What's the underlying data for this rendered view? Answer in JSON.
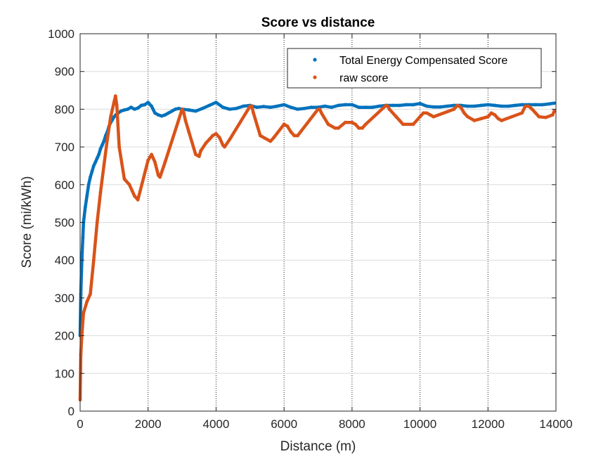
{
  "chart_data": {
    "type": "line",
    "title": "Score vs distance",
    "xlabel": "Distance (m)",
    "ylabel": "Score (mi/kWh)",
    "xlim": [
      0,
      14000
    ],
    "ylim": [
      0,
      1000
    ],
    "xticks": [
      0,
      2000,
      4000,
      6000,
      8000,
      10000,
      12000,
      14000
    ],
    "yticks": [
      0,
      100,
      200,
      300,
      400,
      500,
      600,
      700,
      800,
      900,
      1000
    ],
    "grid": "on",
    "legend_position": "top-right",
    "series": [
      {
        "name": "Total Energy Compensated Score",
        "color": "#0072BD",
        "marker": "dot",
        "x": [
          0,
          20,
          40,
          60,
          80,
          100,
          150,
          200,
          250,
          300,
          350,
          400,
          450,
          500,
          550,
          600,
          650,
          700,
          750,
          800,
          850,
          900,
          950,
          1000,
          1050,
          1100,
          1150,
          1200,
          1300,
          1400,
          1500,
          1600,
          1700,
          1800,
          1900,
          2000,
          2100,
          2200,
          2300,
          2400,
          2500,
          2600,
          2700,
          2800,
          2900,
          3000,
          3200,
          3400,
          3600,
          3800,
          4000,
          4200,
          4400,
          4600,
          4800,
          5000,
          5200,
          5400,
          5600,
          5800,
          6000,
          6200,
          6400,
          6600,
          6800,
          7000,
          7200,
          7400,
          7600,
          7800,
          8000,
          8200,
          8400,
          8600,
          8800,
          9000,
          9200,
          9400,
          9600,
          9800,
          10000,
          10200,
          10400,
          10600,
          10800,
          11000,
          11200,
          11400,
          11600,
          11800,
          12000,
          12200,
          12400,
          12600,
          12800,
          13000,
          13200,
          13400,
          13600,
          13800,
          13950
        ],
        "y": [
          200,
          310,
          370,
          420,
          460,
          500,
          540,
          570,
          600,
          620,
          635,
          650,
          660,
          670,
          680,
          695,
          705,
          715,
          730,
          740,
          755,
          765,
          772,
          780,
          785,
          788,
          792,
          795,
          798,
          800,
          805,
          800,
          803,
          810,
          812,
          818,
          808,
          790,
          785,
          782,
          785,
          790,
          795,
          800,
          802,
          800,
          798,
          795,
          802,
          810,
          818,
          805,
          800,
          802,
          808,
          810,
          805,
          807,
          805,
          808,
          812,
          805,
          800,
          802,
          805,
          805,
          808,
          805,
          810,
          812,
          812,
          805,
          805,
          805,
          808,
          810,
          810,
          810,
          812,
          812,
          815,
          808,
          806,
          806,
          808,
          810,
          810,
          808,
          808,
          810,
          812,
          810,
          808,
          808,
          810,
          812,
          812,
          812,
          812,
          814,
          816
        ]
      },
      {
        "name": "raw score",
        "color": "#D95319",
        "marker": "dot",
        "x": [
          0,
          20,
          50,
          100,
          200,
          300,
          400,
          500,
          600,
          700,
          800,
          900,
          1000,
          1040,
          1080,
          1150,
          1300,
          1450,
          1600,
          1700,
          2000,
          2100,
          2200,
          2300,
          2350,
          2500,
          3000,
          3050,
          3100,
          3200,
          3400,
          3500,
          3550,
          3700,
          3800,
          3900,
          4000,
          4100,
          4200,
          4250,
          4400,
          5000,
          5050,
          5100,
          5300,
          5600,
          5700,
          6000,
          6100,
          6200,
          6300,
          6400,
          7000,
          7050,
          7100,
          7300,
          7500,
          7600,
          7800,
          8000,
          8100,
          8200,
          8300,
          8400,
          9000,
          9050,
          9100,
          9300,
          9400,
          9500,
          9800,
          10000,
          10100,
          10200,
          10300,
          10400,
          11000,
          11100,
          11200,
          11300,
          11400,
          11600,
          11800,
          12000,
          12100,
          12200,
          12300,
          12400,
          13000,
          13100,
          13200,
          13300,
          13400,
          13500,
          13700,
          13900,
          13950
        ],
        "y": [
          30,
          150,
          200,
          260,
          290,
          310,
          400,
          500,
          580,
          650,
          720,
          780,
          820,
          835,
          810,
          700,
          615,
          600,
          570,
          560,
          665,
          680,
          660,
          625,
          620,
          660,
          800,
          790,
          770,
          740,
          680,
          675,
          690,
          710,
          720,
          730,
          735,
          725,
          705,
          700,
          720,
          808,
          808,
          790,
          730,
          715,
          725,
          760,
          755,
          740,
          730,
          730,
          800,
          800,
          790,
          760,
          750,
          750,
          765,
          765,
          760,
          750,
          750,
          760,
          810,
          808,
          800,
          780,
          770,
          760,
          760,
          780,
          790,
          790,
          785,
          780,
          800,
          810,
          805,
          790,
          780,
          770,
          775,
          780,
          790,
          785,
          775,
          770,
          790,
          808,
          808,
          800,
          790,
          780,
          778,
          785,
          795
        ]
      }
    ]
  }
}
